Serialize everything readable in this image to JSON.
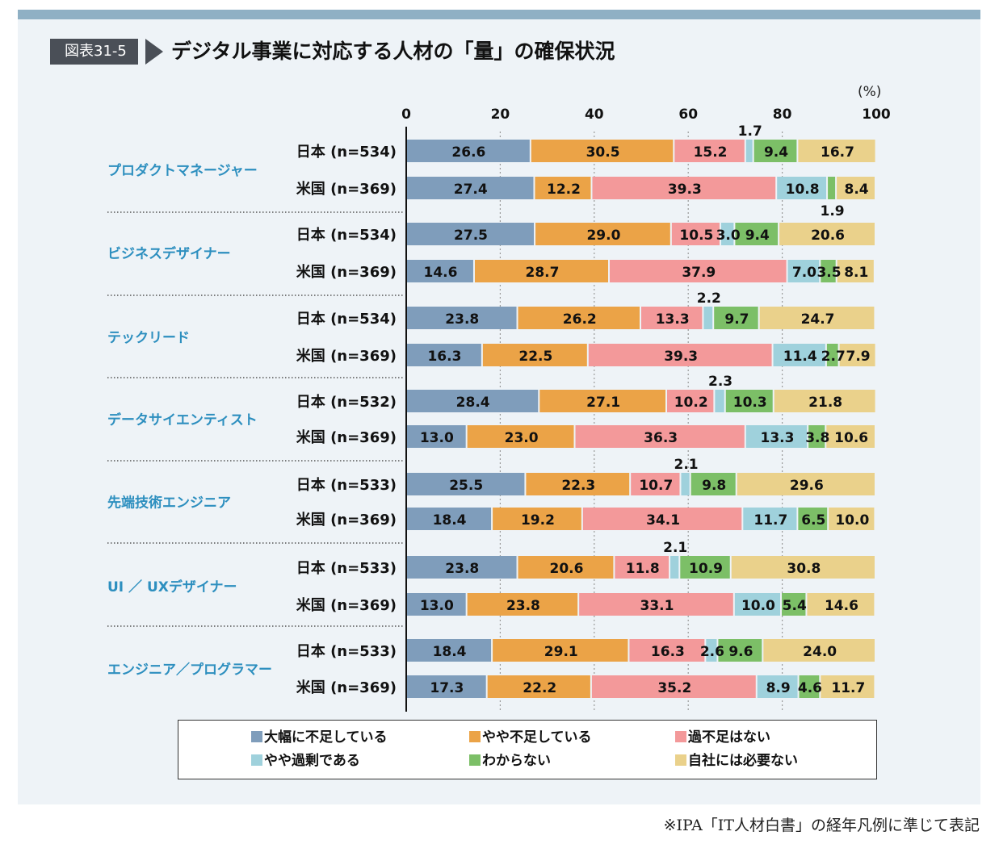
{
  "header": {
    "figure_number": "図表31-5",
    "title": "デジタル事業に対応する人材の「量」の確保状況",
    "unit": "(%)"
  },
  "source_note": "※IPA「IT人材白書」の経年凡例に準じて表記",
  "colors": {
    "severe_shortage": "#7f9dbb",
    "some_shortage": "#eba347",
    "no_shortage": "#f3999a",
    "some_surplus": "#9fd1dc",
    "unknown": "#7cbf67",
    "not_needed": "#ead18b",
    "role_label": "#2d8fbf"
  },
  "chart_data": {
    "type": "bar",
    "orientation": "horizontal",
    "stacked": true,
    "xlim": [
      0,
      100
    ],
    "xticks": [
      "0",
      "20",
      "40",
      "60",
      "80",
      "100"
    ],
    "series_names": [
      "大幅に不足している",
      "やや不足している",
      "過不足はない",
      "やや過剰である",
      "わからない",
      "自社には必要ない"
    ],
    "groups": [
      {
        "role": "プロダクトマネージャー",
        "rows": [
          {
            "label": "日本 (n=534)",
            "values": [
              26.6,
              30.5,
              15.2,
              1.7,
              9.4,
              16.7
            ]
          },
          {
            "label": "米国 (n=369)",
            "values": [
              27.4,
              12.2,
              39.3,
              10.8,
              1.9,
              8.4
            ]
          }
        ]
      },
      {
        "role": "ビジネスデザイナー",
        "rows": [
          {
            "label": "日本 (n=534)",
            "values": [
              27.5,
              29.0,
              10.5,
              3.0,
              9.4,
              20.6
            ]
          },
          {
            "label": "米国 (n=369)",
            "values": [
              14.6,
              28.7,
              37.9,
              7.0,
              3.5,
              8.1
            ]
          }
        ]
      },
      {
        "role": "テックリード",
        "rows": [
          {
            "label": "日本 (n=534)",
            "values": [
              23.8,
              26.2,
              13.3,
              2.2,
              9.7,
              24.7
            ]
          },
          {
            "label": "米国 (n=369)",
            "values": [
              16.3,
              22.5,
              39.3,
              11.4,
              2.7,
              7.9
            ]
          }
        ]
      },
      {
        "role": "データサイエンティスト",
        "rows": [
          {
            "label": "日本 (n=532)",
            "values": [
              28.4,
              27.1,
              10.2,
              2.3,
              10.3,
              21.8
            ]
          },
          {
            "label": "米国 (n=369)",
            "values": [
              13.0,
              23.0,
              36.3,
              13.3,
              3.8,
              10.6
            ]
          }
        ]
      },
      {
        "role": "先端技術エンジニア",
        "rows": [
          {
            "label": "日本 (n=533)",
            "values": [
              25.5,
              22.3,
              10.7,
              2.1,
              9.8,
              29.6
            ]
          },
          {
            "label": "米国 (n=369)",
            "values": [
              18.4,
              19.2,
              34.1,
              11.7,
              6.5,
              10.0
            ]
          }
        ]
      },
      {
        "role": "UI ／ UXデザイナー",
        "rows": [
          {
            "label": "日本 (n=533)",
            "values": [
              23.8,
              20.6,
              11.8,
              2.1,
              10.9,
              30.8
            ]
          },
          {
            "label": "米国 (n=369)",
            "values": [
              13.0,
              23.8,
              33.1,
              10.0,
              5.4,
              14.6
            ]
          }
        ]
      },
      {
        "role": "エンジニア／プログラマー",
        "rows": [
          {
            "label": "日本 (n=533)",
            "values": [
              18.4,
              29.1,
              16.3,
              2.6,
              9.6,
              24.0
            ]
          },
          {
            "label": "米国 (n=369)",
            "values": [
              17.3,
              22.2,
              35.2,
              8.9,
              4.6,
              11.7
            ]
          }
        ]
      }
    ],
    "legend_position": "bottom"
  }
}
